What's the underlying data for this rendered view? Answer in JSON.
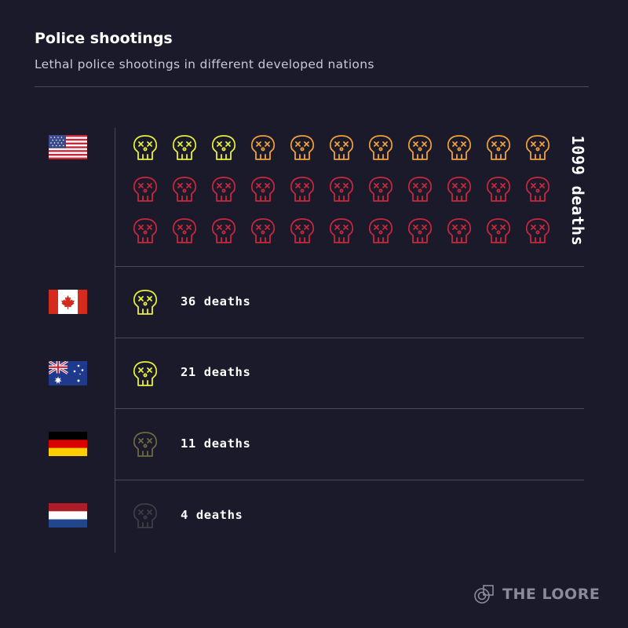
{
  "title": "Police shootings",
  "subtitle": "Lethal police shootings in different developed nations",
  "logo": {
    "text": "THE LOORE",
    "icon": "loore-logo-icon"
  },
  "colors": {
    "background": "#1a1a2b",
    "yellow": "#e8f03a",
    "orange": "#f0a13c",
    "red": "#c8283c",
    "olive": "#6d6a40",
    "dim": "#3e3e46"
  },
  "chart_data": {
    "type": "pictogram",
    "title": "Police shootings",
    "subtitle": "Lethal police shootings in different developed nations",
    "unit": "deaths",
    "icon": "skull-icon",
    "rows": [
      {
        "country_flag": "us-flag-icon",
        "value": 1099,
        "label": "1099 deaths",
        "icon_count": 33,
        "icon_colors": [
          "#e8f03a",
          "#e8f03a",
          "#e8f03a",
          "#f0a13c",
          "#f0a13c",
          "#f0a13c",
          "#f0a13c",
          "#f0a13c",
          "#f0a13c",
          "#f0a13c",
          "#f0a13c",
          "#c8283c",
          "#c8283c",
          "#c8283c",
          "#c8283c",
          "#c8283c",
          "#c8283c",
          "#c8283c",
          "#c8283c",
          "#c8283c",
          "#c8283c",
          "#c8283c",
          "#c8283c",
          "#c8283c",
          "#c8283c",
          "#c8283c",
          "#c8283c",
          "#c8283c",
          "#c8283c",
          "#c8283c",
          "#c8283c",
          "#c8283c",
          "#c8283c"
        ]
      },
      {
        "country_flag": "canada-flag-icon",
        "value": 36,
        "label": "36 deaths",
        "icon_count": 1,
        "icon_colors": [
          "#e8f03a"
        ]
      },
      {
        "country_flag": "australia-flag-icon",
        "value": 21,
        "label": "21 deaths",
        "icon_count": 1,
        "icon_colors": [
          "#e8f03a"
        ]
      },
      {
        "country_flag": "germany-flag-icon",
        "value": 11,
        "label": "11 deaths",
        "icon_count": 1,
        "icon_colors": [
          "#6d6a40"
        ]
      },
      {
        "country_flag": "netherlands-flag-icon",
        "value": 4,
        "label": "4 deaths",
        "icon_count": 1,
        "icon_colors": [
          "#3e3e46"
        ]
      }
    ]
  }
}
